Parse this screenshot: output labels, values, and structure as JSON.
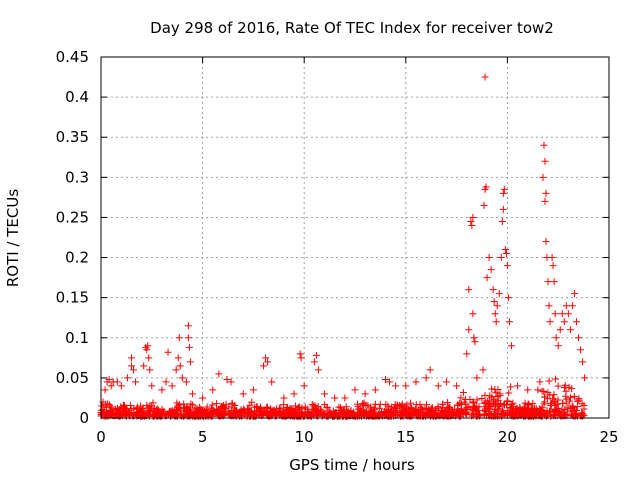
{
  "chart_data": {
    "type": "scatter",
    "title": "Day 298 of 2016, Rate Of TEC Index for receiver tow2",
    "xlabel": "GPS time / hours",
    "ylabel": "ROTI / TECUs",
    "xlim": [
      0,
      25
    ],
    "ylim": [
      0,
      0.45
    ],
    "xticks": [
      0,
      5,
      10,
      15,
      20,
      25
    ],
    "xtick_labels": [
      "0",
      "5",
      "10",
      "15",
      "20",
      "25"
    ],
    "yticks": [
      0,
      0.05,
      0.1,
      0.15,
      0.2,
      0.25,
      0.3,
      0.35,
      0.4,
      0.45
    ],
    "ytick_labels": [
      "0",
      "0.05",
      "0.1",
      "0.15",
      "0.2",
      "0.25",
      "0.3",
      "0.35",
      "0.4",
      "0.45"
    ],
    "grid": true,
    "marker": "plus",
    "color": "#ff0000",
    "series": [
      {
        "name": "ROTI",
        "points": [
          [
            0.1,
            0.02
          ],
          [
            0.2,
            0.035
          ],
          [
            0.3,
            0.045
          ],
          [
            0.4,
            0.048
          ],
          [
            0.5,
            0.04
          ],
          [
            0.6,
            0.045
          ],
          [
            0.8,
            0.045
          ],
          [
            1.0,
            0.04
          ],
          [
            1.3,
            0.05
          ],
          [
            1.5,
            0.065
          ],
          [
            1.5,
            0.075
          ],
          [
            1.6,
            0.06
          ],
          [
            1.7,
            0.045
          ],
          [
            2.1,
            0.065
          ],
          [
            2.2,
            0.088
          ],
          [
            2.25,
            0.085
          ],
          [
            2.3,
            0.09
          ],
          [
            2.35,
            0.075
          ],
          [
            2.4,
            0.06
          ],
          [
            2.5,
            0.04
          ],
          [
            3.0,
            0.035
          ],
          [
            3.2,
            0.045
          ],
          [
            3.3,
            0.082
          ],
          [
            3.5,
            0.04
          ],
          [
            3.7,
            0.06
          ],
          [
            3.8,
            0.075
          ],
          [
            3.85,
            0.1
          ],
          [
            3.9,
            0.065
          ],
          [
            4.0,
            0.05
          ],
          [
            4.2,
            0.045
          ],
          [
            4.3,
            0.115
          ],
          [
            4.3,
            0.1
          ],
          [
            4.35,
            0.088
          ],
          [
            4.4,
            0.07
          ],
          [
            4.5,
            0.03
          ],
          [
            5.0,
            0.025
          ],
          [
            5.5,
            0.035
          ],
          [
            5.8,
            0.055
          ],
          [
            6.2,
            0.048
          ],
          [
            6.4,
            0.045
          ],
          [
            7.0,
            0.03
          ],
          [
            7.5,
            0.035
          ],
          [
            8.0,
            0.065
          ],
          [
            8.1,
            0.075
          ],
          [
            8.2,
            0.07
          ],
          [
            8.4,
            0.045
          ],
          [
            9.0,
            0.025
          ],
          [
            9.5,
            0.03
          ],
          [
            9.8,
            0.08
          ],
          [
            9.85,
            0.075
          ],
          [
            10.0,
            0.04
          ],
          [
            10.5,
            0.07
          ],
          [
            10.6,
            0.078
          ],
          [
            10.7,
            0.06
          ],
          [
            11.0,
            0.03
          ],
          [
            11.5,
            0.025
          ],
          [
            12.0,
            0.025
          ],
          [
            12.5,
            0.035
          ],
          [
            13.0,
            0.03
          ],
          [
            13.5,
            0.035
          ],
          [
            14.0,
            0.048
          ],
          [
            14.2,
            0.045
          ],
          [
            14.5,
            0.04
          ],
          [
            15.0,
            0.04
          ],
          [
            15.5,
            0.045
          ],
          [
            16.0,
            0.05
          ],
          [
            16.2,
            0.06
          ],
          [
            16.6,
            0.04
          ],
          [
            17.0,
            0.045
          ],
          [
            17.5,
            0.04
          ],
          [
            18.0,
            0.08
          ],
          [
            18.1,
            0.11
          ],
          [
            18.1,
            0.16
          ],
          [
            18.2,
            0.245
          ],
          [
            18.25,
            0.24
          ],
          [
            18.3,
            0.25
          ],
          [
            18.3,
            0.13
          ],
          [
            18.35,
            0.1
          ],
          [
            18.4,
            0.095
          ],
          [
            18.5,
            0.05
          ],
          [
            18.8,
            0.06
          ],
          [
            18.85,
            0.265
          ],
          [
            18.9,
            0.285
          ],
          [
            18.95,
            0.288
          ],
          [
            18.9,
            0.425
          ],
          [
            19.0,
            0.175
          ],
          [
            19.1,
            0.2
          ],
          [
            19.2,
            0.185
          ],
          [
            19.3,
            0.16
          ],
          [
            19.35,
            0.145
          ],
          [
            19.4,
            0.13
          ],
          [
            19.45,
            0.12
          ],
          [
            19.5,
            0.14
          ],
          [
            19.6,
            0.155
          ],
          [
            19.7,
            0.2
          ],
          [
            19.75,
            0.245
          ],
          [
            19.8,
            0.26
          ],
          [
            19.8,
            0.28
          ],
          [
            19.85,
            0.285
          ],
          [
            19.9,
            0.21
          ],
          [
            19.95,
            0.205
          ],
          [
            20.0,
            0.19
          ],
          [
            20.05,
            0.15
          ],
          [
            20.1,
            0.12
          ],
          [
            20.2,
            0.09
          ],
          [
            20.5,
            0.04
          ],
          [
            21.0,
            0.035
          ],
          [
            21.5,
            0.035
          ],
          [
            21.6,
            0.045
          ],
          [
            21.75,
            0.3
          ],
          [
            21.8,
            0.34
          ],
          [
            21.85,
            0.32
          ],
          [
            21.85,
            0.27
          ],
          [
            21.9,
            0.28
          ],
          [
            21.9,
            0.22
          ],
          [
            21.95,
            0.2
          ],
          [
            22.0,
            0.17
          ],
          [
            22.05,
            0.14
          ],
          [
            22.1,
            0.12
          ],
          [
            22.2,
            0.2
          ],
          [
            22.25,
            0.19
          ],
          [
            22.3,
            0.17
          ],
          [
            22.35,
            0.13
          ],
          [
            22.4,
            0.1
          ],
          [
            22.5,
            0.09
          ],
          [
            22.6,
            0.11
          ],
          [
            22.7,
            0.13
          ],
          [
            22.8,
            0.12
          ],
          [
            22.9,
            0.14
          ],
          [
            23.0,
            0.13
          ],
          [
            23.1,
            0.11
          ],
          [
            23.2,
            0.14
          ],
          [
            23.3,
            0.155
          ],
          [
            23.4,
            0.12
          ],
          [
            23.5,
            0.1
          ],
          [
            23.6,
            0.085
          ],
          [
            23.7,
            0.07
          ],
          [
            23.8,
            0.05
          ]
        ]
      }
    ]
  }
}
